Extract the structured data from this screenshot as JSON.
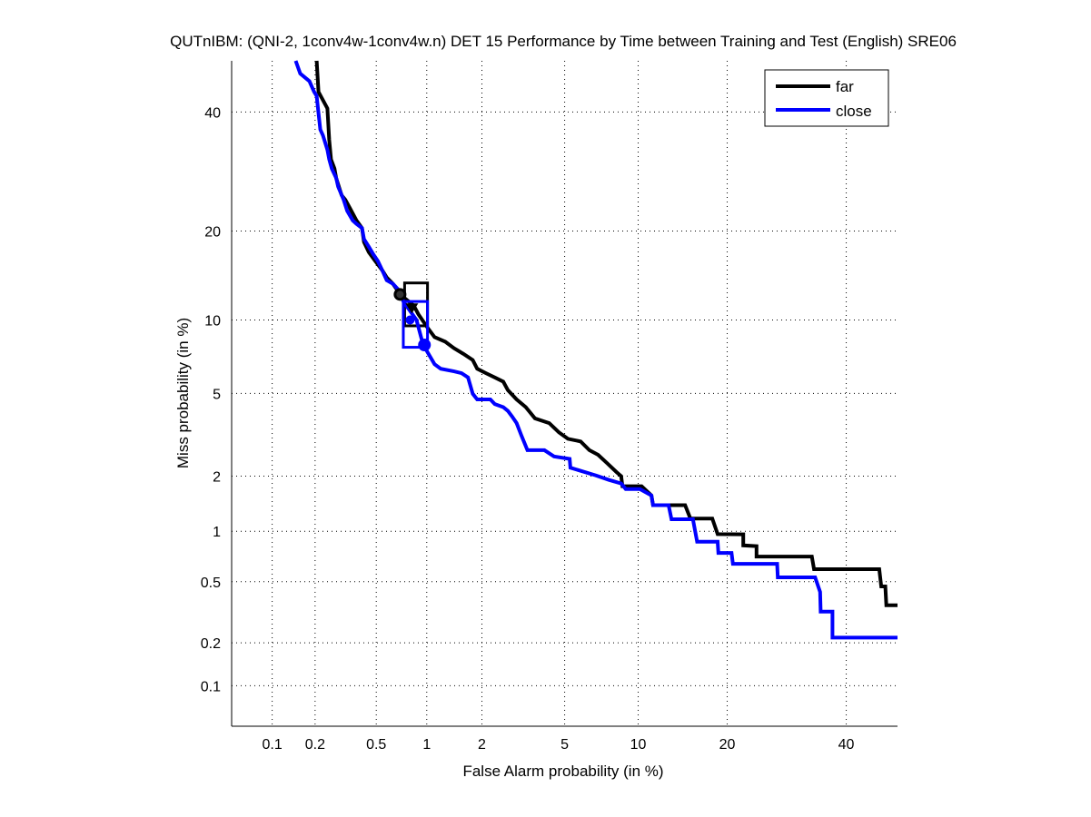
{
  "chart_data": {
    "type": "line",
    "title": "QUTnIBM: (QNI-2, 1conv4w-1conv4w.n) DET 15 Performance by Time between Training and Test (English) SRE06",
    "xlabel": "False Alarm probability (in %)",
    "ylabel": "Miss probability (in %)",
    "scale": "normal-deviate",
    "xlim": [
      0.05,
      50
    ],
    "ylim": [
      0.05,
      50
    ],
    "grid": true,
    "legend_position": "top-right",
    "xticks": [
      0.1,
      0.2,
      0.5,
      1,
      2,
      5,
      10,
      20,
      40
    ],
    "xtick_labels": [
      "0.1",
      "0.2",
      "0.5",
      "1",
      "2",
      "5",
      "10",
      "20",
      "40"
    ],
    "yticks": [
      0.1,
      0.2,
      0.5,
      1,
      2,
      5,
      10,
      20,
      40
    ],
    "ytick_labels": [
      "0.1",
      "0.2",
      "0.5",
      "1",
      "2",
      "5",
      "10",
      "20",
      "40"
    ],
    "series": [
      {
        "name": "far",
        "color": "#000000",
        "points": [
          [
            0.205,
            50
          ],
          [
            0.211,
            43.9
          ],
          [
            0.226,
            42.3
          ],
          [
            0.242,
            40.7
          ],
          [
            0.249,
            34.8
          ],
          [
            0.256,
            31.3
          ],
          [
            0.27,
            29.7
          ],
          [
            0.277,
            28.1
          ],
          [
            0.301,
            25.3
          ],
          [
            0.318,
            24.6
          ],
          [
            0.341,
            23.3
          ],
          [
            0.375,
            21.5
          ],
          [
            0.407,
            20.4
          ],
          [
            0.419,
            18.5
          ],
          [
            0.449,
            17.2
          ],
          [
            0.493,
            16.1
          ],
          [
            0.545,
            15.0
          ],
          [
            0.58,
            14.2
          ],
          [
            0.633,
            13.5
          ],
          [
            0.681,
            12.7
          ],
          [
            0.698,
            12.4
          ],
          [
            0.841,
            11.3
          ],
          [
            0.895,
            10.5
          ],
          [
            1.01,
            9.35
          ],
          [
            1.108,
            8.59
          ],
          [
            1.27,
            8.24
          ],
          [
            1.42,
            7.76
          ],
          [
            1.59,
            7.38
          ],
          [
            1.79,
            6.95
          ],
          [
            1.89,
            6.39
          ],
          [
            2.1,
            6.12
          ],
          [
            2.33,
            5.87
          ],
          [
            2.57,
            5.63
          ],
          [
            2.71,
            5.17
          ],
          [
            2.99,
            4.7
          ],
          [
            3.31,
            4.34
          ],
          [
            3.66,
            3.85
          ],
          [
            4.26,
            3.66
          ],
          [
            4.71,
            3.31
          ],
          [
            5.17,
            3.08
          ],
          [
            5.87,
            2.99
          ],
          [
            6.39,
            2.71
          ],
          [
            6.95,
            2.57
          ],
          [
            7.57,
            2.33
          ],
          [
            8.24,
            2.1
          ],
          [
            8.6,
            2.0
          ],
          [
            8.7,
            1.77
          ],
          [
            10.3,
            1.77
          ],
          [
            11.2,
            1.58
          ],
          [
            11.35,
            1.4
          ],
          [
            14.7,
            1.4
          ],
          [
            15.3,
            1.18
          ],
          [
            18.0,
            1.18
          ],
          [
            18.7,
            0.963
          ],
          [
            22.3,
            0.96
          ],
          [
            22.3,
            0.828
          ],
          [
            24.3,
            0.82
          ],
          [
            24.3,
            0.711
          ],
          [
            33.6,
            0.711
          ],
          [
            34.0,
            0.597
          ],
          [
            46.4,
            0.597
          ],
          [
            46.8,
            0.467
          ],
          [
            47.6,
            0.467
          ],
          [
            47.8,
            0.355
          ],
          [
            50,
            0.355
          ]
        ],
        "min_dcf_point": [
          0.698,
          12.4
        ],
        "act_dcf_point": [
          0.82,
          11.0
        ],
        "dcf_box": {
          "fa": [
            0.743,
            1.01
          ],
          "miss": [
            9.5,
            13.6
          ]
        }
      },
      {
        "name": "close",
        "color": "#0000ff",
        "points": [
          [
            0.147,
            50
          ],
          [
            0.158,
            47.5
          ],
          [
            0.183,
            46.0
          ],
          [
            0.197,
            43.9
          ],
          [
            0.205,
            43.1
          ],
          [
            0.211,
            39.8
          ],
          [
            0.217,
            36.7
          ],
          [
            0.226,
            35.6
          ],
          [
            0.242,
            33.0
          ],
          [
            0.249,
            31.3
          ],
          [
            0.259,
            29.7
          ],
          [
            0.277,
            28.1
          ],
          [
            0.285,
            26.7
          ],
          [
            0.31,
            24.6
          ],
          [
            0.327,
            22.9
          ],
          [
            0.355,
            21.5
          ],
          [
            0.375,
            21.0
          ],
          [
            0.407,
            20.4
          ],
          [
            0.419,
            18.9
          ],
          [
            0.449,
            17.9
          ],
          [
            0.48,
            16.9
          ],
          [
            0.512,
            16.1
          ],
          [
            0.545,
            15.0
          ],
          [
            0.58,
            13.9
          ],
          [
            0.633,
            13.5
          ],
          [
            0.698,
            12.7
          ],
          [
            0.73,
            11.7
          ],
          [
            0.873,
            10.0
          ],
          [
            0.952,
            8.03
          ],
          [
            1.035,
            7.26
          ],
          [
            1.108,
            6.67
          ],
          [
            1.2,
            6.39
          ],
          [
            1.42,
            6.23
          ],
          [
            1.56,
            6.12
          ],
          [
            1.69,
            5.87
          ],
          [
            1.79,
            4.98
          ],
          [
            1.89,
            4.7
          ],
          [
            2.21,
            4.7
          ],
          [
            2.33,
            4.48
          ],
          [
            2.57,
            4.34
          ],
          [
            2.71,
            4.17
          ],
          [
            2.84,
            3.93
          ],
          [
            2.99,
            3.66
          ],
          [
            3.15,
            3.21
          ],
          [
            3.37,
            2.71
          ],
          [
            4.05,
            2.71
          ],
          [
            4.48,
            2.52
          ],
          [
            5.26,
            2.45
          ],
          [
            5.3,
            2.21
          ],
          [
            6.78,
            2.02
          ],
          [
            7.7,
            1.91
          ],
          [
            8.6,
            1.83
          ],
          [
            8.96,
            1.71
          ],
          [
            10.15,
            1.71
          ],
          [
            11.2,
            1.58
          ],
          [
            11.35,
            1.4
          ],
          [
            12.9,
            1.4
          ],
          [
            13.2,
            1.17
          ],
          [
            15.6,
            1.17
          ],
          [
            16.1,
            0.87
          ],
          [
            18.7,
            0.87
          ],
          [
            18.8,
            0.748
          ],
          [
            20.6,
            0.748
          ],
          [
            20.8,
            0.643
          ],
          [
            27.6,
            0.643
          ],
          [
            27.7,
            0.532
          ],
          [
            34.2,
            0.532
          ],
          [
            35.1,
            0.431
          ],
          [
            35.2,
            0.323
          ],
          [
            37.4,
            0.323
          ],
          [
            37.4,
            0.217
          ],
          [
            50,
            0.217
          ]
        ],
        "min_dcf_point": [
          0.97,
          8.0
        ],
        "act_dcf_point": [
          0.8,
          10.0
        ],
        "dcf_box": {
          "fa": [
            0.73,
            1.01
          ],
          "miss": [
            7.83,
            11.7
          ]
        }
      }
    ]
  }
}
